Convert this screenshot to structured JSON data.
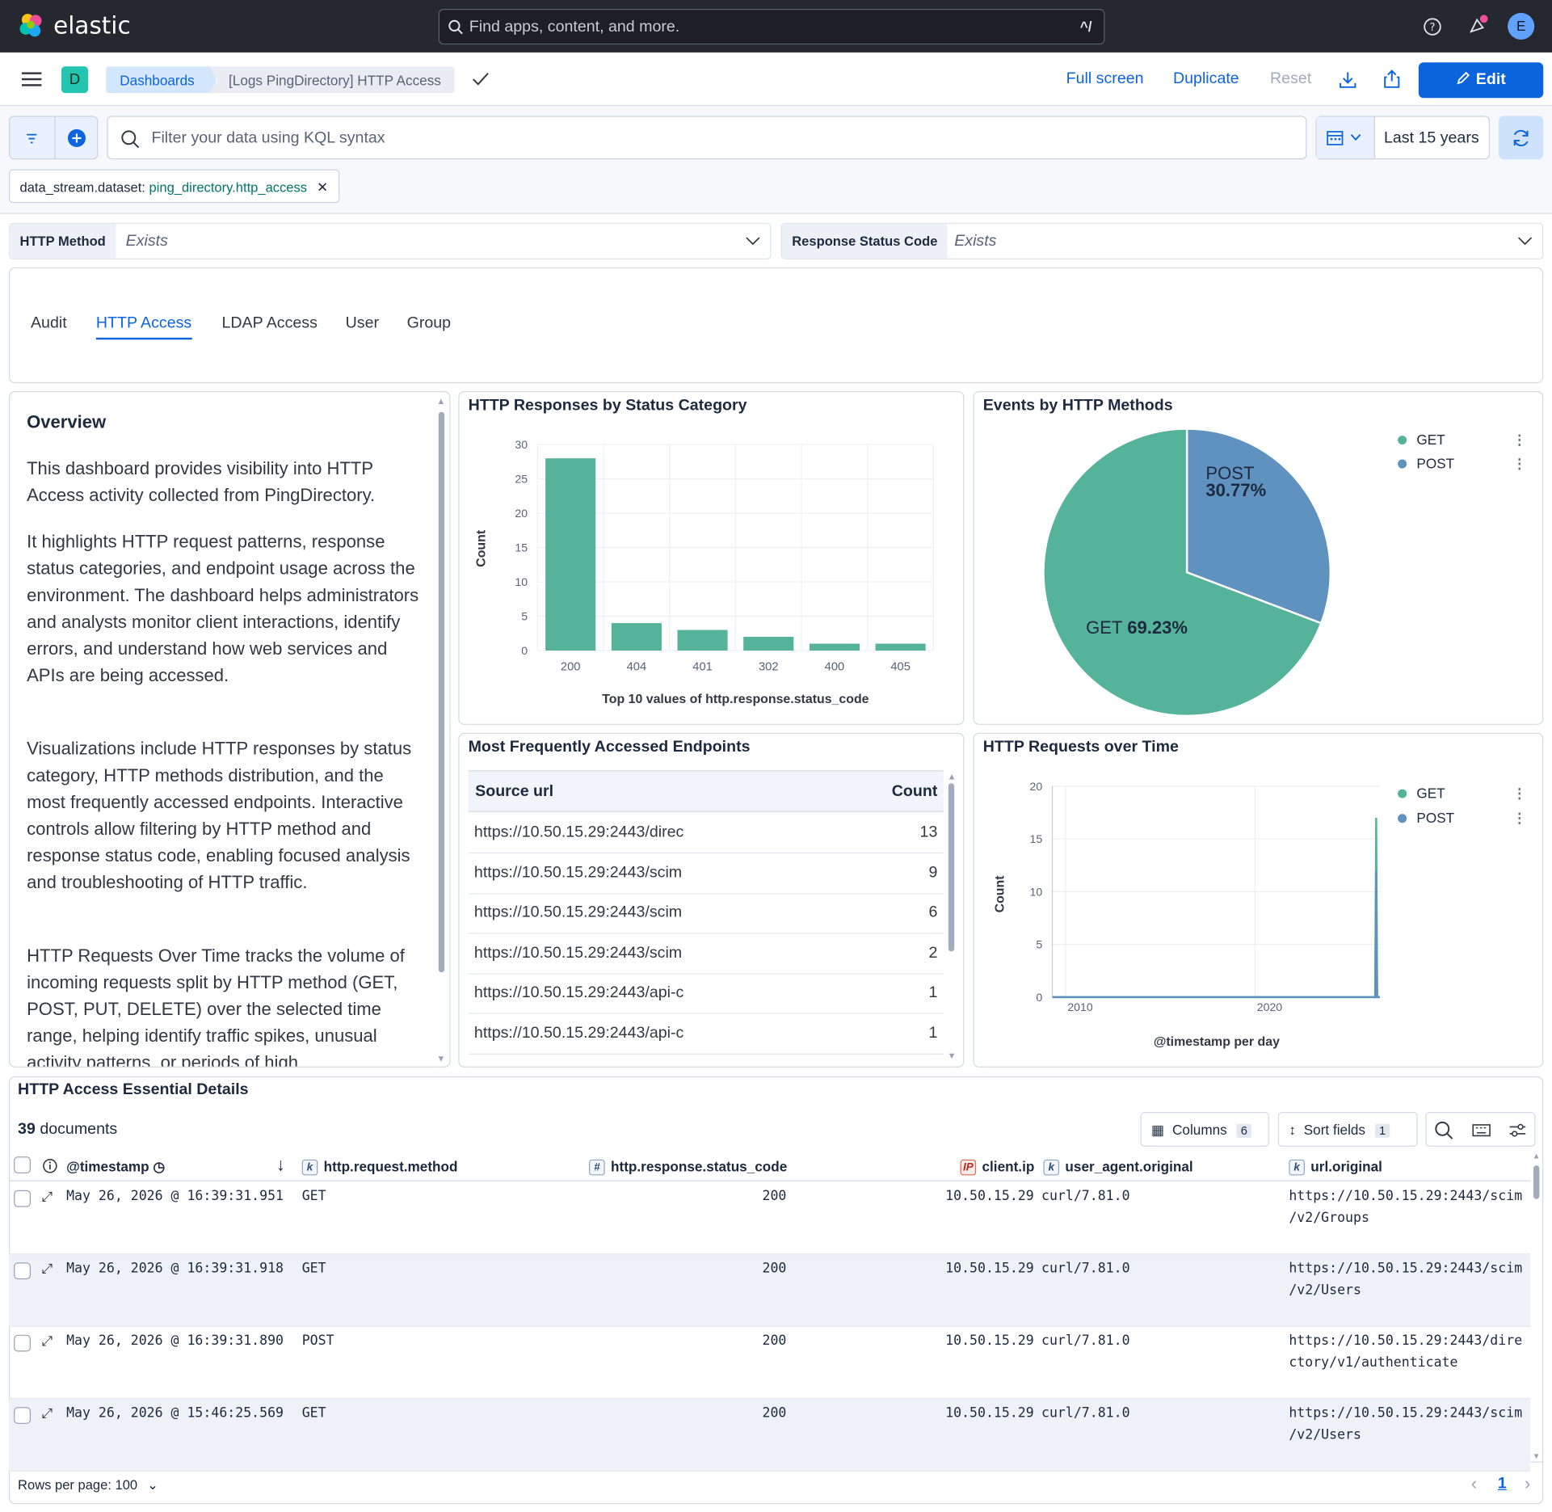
{
  "header": {
    "brand": "elastic",
    "search_placeholder": "Find apps, content, and more.",
    "search_shortcut": "^/",
    "avatar_initial": "E"
  },
  "nav": {
    "space_initial": "D",
    "breadcrumb_root": "Dashboards",
    "breadcrumb_current": "[Logs PingDirectory] HTTP Access",
    "full_screen": "Full screen",
    "duplicate": "Duplicate",
    "reset": "Reset",
    "edit": "Edit"
  },
  "query": {
    "placeholder": "Filter your data using KQL syntax",
    "time_range": "Last 15 years"
  },
  "filter_pill": {
    "field": "data_stream.dataset: ",
    "value": "ping_directory.http_access"
  },
  "controls": [
    {
      "label": "HTTP Method",
      "value": "Exists"
    },
    {
      "label": "Response Status Code",
      "value": "Exists"
    }
  ],
  "tabs": [
    "Audit",
    "HTTP Access",
    "LDAP Access",
    "User",
    "Group"
  ],
  "overview": {
    "title": "Overview",
    "paragraphs": [
      "This dashboard provides visibility into HTTP Access activity collected from PingDirectory.",
      "It highlights HTTP request patterns, response status categories, and endpoint usage across the environment. The dashboard helps administrators and analysts monitor client interactions, identify errors, and understand how web services and APIs are being accessed.",
      "Visualizations include HTTP responses by status category, HTTP methods distribution, and the most frequently accessed endpoints. Interactive controls allow filtering by HTTP method and response status code, enabling focused analysis and troubleshooting of HTTP traffic.",
      "HTTP Requests Over Time tracks the volume of incoming requests split by HTTP method (GET, POST, PUT, DELETE) over the selected time range, helping identify traffic spikes, unusual activity patterns, or periods of high"
    ]
  },
  "chart_data": [
    {
      "type": "bar",
      "title": "HTTP Responses by Status Category",
      "categories": [
        "200",
        "404",
        "401",
        "302",
        "400",
        "405"
      ],
      "values": [
        28,
        4,
        3,
        2,
        1,
        1
      ],
      "xlabel": "Top 10 values of http.response.status_code",
      "ylabel": "Count",
      "ylim": [
        0,
        30
      ],
      "yticks": [
        0,
        5,
        10,
        15,
        20,
        25,
        30
      ],
      "color": "#54b399",
      "grid": true
    },
    {
      "type": "pie",
      "title": "Events by HTTP Methods",
      "slices": [
        {
          "name": "GET",
          "value": 69.23,
          "label": "69.23%",
          "color": "#54b399"
        },
        {
          "name": "POST",
          "value": 30.77,
          "label": "30.77%",
          "color": "#6092c0"
        }
      ],
      "legend": "top-right"
    },
    {
      "type": "line",
      "title": "HTTP Requests over Time",
      "xlabel": "@timestamp per day",
      "ylabel": "Count",
      "ylim": [
        0,
        20
      ],
      "yticks": [
        0,
        5,
        10,
        15,
        20
      ],
      "xticks": [
        "2010",
        "2020"
      ],
      "xrange": [
        2009.3,
        2026.6
      ],
      "legend": "top-right",
      "series": [
        {
          "name": "GET",
          "color": "#54b399",
          "spike_x": 2026.4,
          "spike_y": 17
        },
        {
          "name": "POST",
          "color": "#6092c0",
          "spike_x": 2026.4,
          "spike_y": 12
        }
      ]
    }
  ],
  "endpoints": {
    "title": "Most Frequently Accessed Endpoints",
    "col_url": "Source url",
    "col_count": "Count",
    "rows": [
      {
        "url": "https://10.50.15.29:2443/direc",
        "count": "13"
      },
      {
        "url": "https://10.50.15.29:2443/scim",
        "count": "9"
      },
      {
        "url": "https://10.50.15.29:2443/scim",
        "count": "6"
      },
      {
        "url": "https://10.50.15.29:2443/scim",
        "count": "2"
      },
      {
        "url": "https://10.50.15.29:2443/api-c",
        "count": "1"
      },
      {
        "url": "https://10.50.15.29:2443/api-c",
        "count": "1"
      }
    ]
  },
  "details": {
    "title": "HTTP Access Essential Details",
    "doc_count": "39",
    "doc_label": "documents",
    "columns_label": "Columns",
    "columns_count": "6",
    "sort_label": "Sort fields",
    "sort_count": "1",
    "headers": [
      "@timestamp",
      "http.request.method",
      "http.response.status_code",
      "client.ip",
      "user_agent.original",
      "url.original"
    ],
    "rows": [
      {
        "ts": "May 26, 2026 @ 16:39:31.951",
        "method": "GET",
        "status": "200",
        "ip": "10.50.15.29",
        "ua": "curl/7.81.0",
        "url1": "https://10.50.15.29:2443/scim",
        "url2": "/v2/Groups"
      },
      {
        "ts": "May 26, 2026 @ 16:39:31.918",
        "method": "GET",
        "status": "200",
        "ip": "10.50.15.29",
        "ua": "curl/7.81.0",
        "url1": "https://10.50.15.29:2443/scim",
        "url2": "/v2/Users"
      },
      {
        "ts": "May 26, 2026 @ 16:39:31.890",
        "method": "POST",
        "status": "200",
        "ip": "10.50.15.29",
        "ua": "curl/7.81.0",
        "url1": "https://10.50.15.29:2443/dire",
        "url2": "ctory/v1/authenticate"
      },
      {
        "ts": "May 26, 2026 @ 15:46:25.569",
        "method": "GET",
        "status": "200",
        "ip": "10.50.15.29",
        "ua": "curl/7.81.0",
        "url1": "https://10.50.15.29:2443/scim",
        "url2": "/v2/Users"
      }
    ],
    "rows_per_page": "Rows per page: 100",
    "page": "1"
  }
}
